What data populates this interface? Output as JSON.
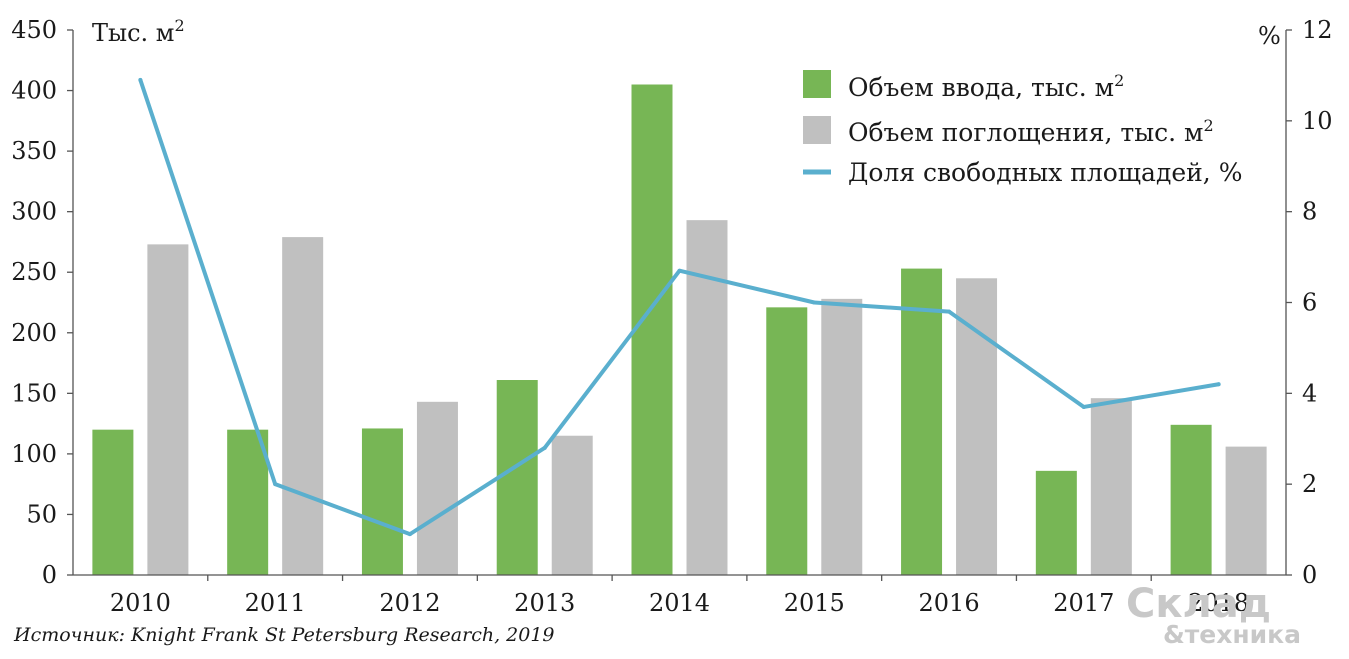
{
  "chart_data": {
    "type": "bar",
    "categories": [
      "2010",
      "2011",
      "2012",
      "2013",
      "2014",
      "2015",
      "2016",
      "2017",
      "2018"
    ],
    "series": [
      {
        "name": "Объем ввода, тыс. м",
        "kind": "bar",
        "axis": "left",
        "color": "#77b655",
        "values": [
          120,
          120,
          121,
          161,
          405,
          221,
          253,
          86,
          124
        ]
      },
      {
        "name": "Объем поглощения, тыс. м",
        "kind": "bar",
        "axis": "left",
        "color": "#c0c0c0",
        "values": [
          273,
          279,
          143,
          115,
          293,
          228,
          245,
          146,
          106
        ]
      },
      {
        "name": "Доля свободных площадей, %",
        "kind": "line",
        "axis": "right",
        "color": "#5aafce",
        "values": [
          10.9,
          2.0,
          0.9,
          2.8,
          6.7,
          6.0,
          5.8,
          3.7,
          4.2
        ]
      }
    ],
    "left_axis": {
      "label": "Тыс. м",
      "superscript": "2",
      "ylim": [
        0,
        450
      ],
      "ticks": [
        "0",
        "50",
        "100",
        "150",
        "200",
        "250",
        "300",
        "350",
        "400",
        "450"
      ]
    },
    "right_axis": {
      "label": "%",
      "ylim": [
        0,
        12
      ],
      "ticks": [
        "0",
        "2",
        "4",
        "6",
        "8",
        "10",
        "12"
      ]
    },
    "legend": {
      "position": "top-right",
      "superscript": "2"
    },
    "grid": false,
    "source": "Источник: Knight Frank St Petersburg Research, 2019"
  },
  "watermark": {
    "line1": "Склад",
    "line2": "&техника"
  }
}
